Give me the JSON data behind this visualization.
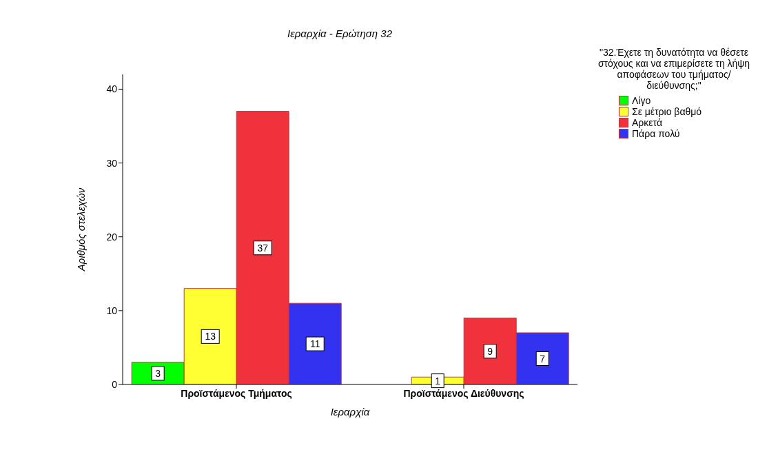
{
  "chart_data": {
    "type": "bar",
    "title": "Ιεραρχία - Ερώτηση 32",
    "xlabel": "Ιεραρχία",
    "ylabel": "Αριθμός στελεχών",
    "legend_title": "\"32.Έχετε τη δυνατότητα να θέσετε στόχους και να επιμερίσετε τη λήψη αποφάσεων του τμήματος/διεύθυνσης;\"",
    "categories": [
      "Προϊστάμενος Τμήματος",
      "Προϊστάμενος Διεύθυνσης"
    ],
    "series": [
      {
        "name": "Λίγο",
        "color": "#00ff00",
        "values": [
          3,
          null
        ]
      },
      {
        "name": "Σε μέτριο βαθμό",
        "color": "#ffff33",
        "values": [
          13,
          1
        ]
      },
      {
        "name": "Αρκετά",
        "color": "#f0323c",
        "values": [
          37,
          9
        ]
      },
      {
        "name": "Πάρα πολύ",
        "color": "#3232f0",
        "values": [
          11,
          7
        ]
      }
    ],
    "ylim": [
      0,
      42
    ],
    "yticks": [
      0,
      10,
      20,
      30,
      40
    ],
    "grid": false,
    "legend": "right",
    "data_labels": true
  }
}
